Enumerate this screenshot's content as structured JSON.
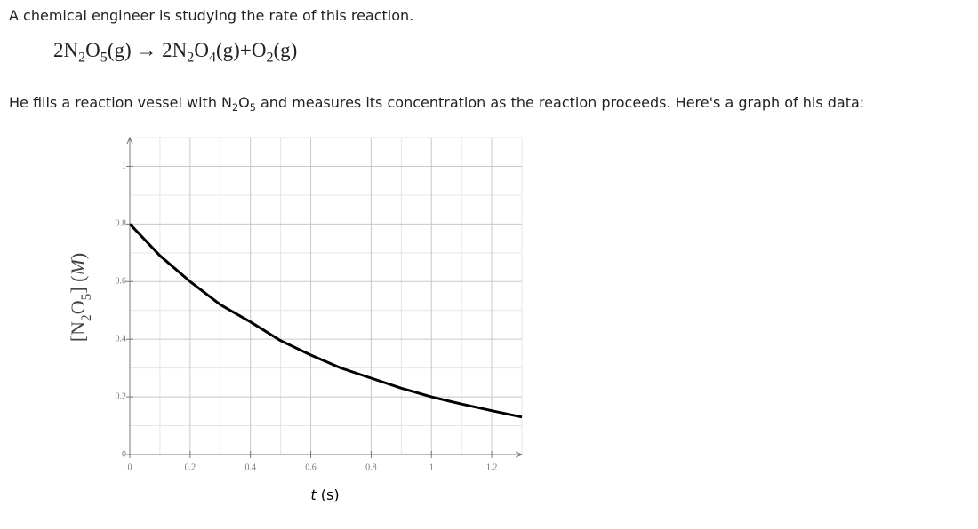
{
  "question": {
    "intro": "A chemical engineer is studying the rate of this reaction.",
    "equation": [
      {
        "t": "2N"
      },
      {
        "sub": "2"
      },
      {
        "t": "O"
      },
      {
        "sub": "5"
      },
      {
        "t": "(g)"
      },
      {
        "t": " → 2N"
      },
      {
        "sub": "2"
      },
      {
        "t": "O"
      },
      {
        "sub": "4"
      },
      {
        "t": "(g)"
      },
      {
        "t": "+O"
      },
      {
        "sub": "2"
      },
      {
        "t": "(g)"
      }
    ],
    "prompt": [
      {
        "t": "He fills a reaction vessel with N"
      },
      {
        "sub": "2"
      },
      {
        "t": "O"
      },
      {
        "sub": "5"
      },
      {
        "t": " and measures its concentration as the reaction proceeds. Here's a graph of his data:"
      }
    ]
  },
  "chart_data": {
    "type": "line",
    "xlabel": [
      {
        "i": "t"
      },
      {
        "t": " (s)"
      }
    ],
    "ylabel": [
      {
        "t": "[N"
      },
      {
        "sub": "2"
      },
      {
        "t": "O"
      },
      {
        "sub": "5"
      },
      {
        "t": "] ("
      },
      {
        "i": "M"
      },
      {
        "t": ")"
      }
    ],
    "x": [
      0,
      0.1,
      0.2,
      0.3,
      0.4,
      0.5,
      0.6,
      0.7,
      0.8,
      0.9,
      1.0,
      1.1,
      1.2,
      1.3
    ],
    "values": [
      0.8,
      0.69,
      0.6,
      0.52,
      0.46,
      0.395,
      0.345,
      0.3,
      0.265,
      0.23,
      0.2,
      0.175,
      0.152,
      0.13
    ],
    "color": "#000000",
    "xlim": [
      0,
      1.3
    ],
    "ylim": [
      0,
      1.1
    ],
    "xticks": [
      0,
      0.2,
      0.4,
      0.6,
      0.8,
      1,
      1.2
    ],
    "yticks": [
      0,
      0.2,
      0.4,
      0.6,
      0.8,
      1
    ],
    "x_minor_ticks": [
      0.1,
      0.3,
      0.5,
      0.7,
      0.9,
      1.1,
      1.3
    ],
    "y_minor_ticks": [
      0.1,
      0.3,
      0.5,
      0.7,
      0.9,
      1.1
    ],
    "grid": true
  }
}
